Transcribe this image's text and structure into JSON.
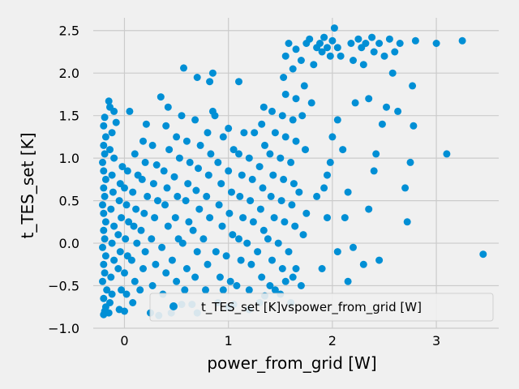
{
  "chart_data": {
    "type": "scatter",
    "title": "",
    "xlabel": "power_from_grid [W]",
    "ylabel": "t_TES_set [K]",
    "xlim": [
      -0.3,
      3.6
    ],
    "ylim": [
      -1.0,
      2.65
    ],
    "x_ticks": [
      0,
      1,
      2,
      3
    ],
    "x_tick_labels": [
      "0",
      "1",
      "2",
      "3"
    ],
    "y_ticks": [
      -1.0,
      -0.5,
      0.0,
      0.5,
      1.0,
      1.5,
      2.0,
      2.5
    ],
    "y_tick_labels": [
      "−1.0",
      "−0.5",
      "0.0",
      "0.5",
      "1.0",
      "1.5",
      "2.0",
      "2.5"
    ],
    "grid": true,
    "legend_position": "lower-right",
    "series": [
      {
        "name": "t_TES_set [K]vspower_from_grid [W]",
        "color": "#008fd5",
        "points": [
          [
            -0.2,
            -0.84
          ],
          [
            -0.19,
            -0.8
          ],
          [
            -0.18,
            -0.75
          ],
          [
            -0.2,
            -0.65
          ],
          [
            -0.17,
            -0.55
          ],
          [
            -0.21,
            -0.45
          ],
          [
            -0.19,
            -0.35
          ],
          [
            -0.2,
            -0.25
          ],
          [
            -0.18,
            -0.15
          ],
          [
            -0.21,
            -0.05
          ],
          [
            -0.19,
            0.05
          ],
          [
            -0.2,
            0.15
          ],
          [
            -0.18,
            0.25
          ],
          [
            -0.2,
            0.35
          ],
          [
            -0.21,
            0.45
          ],
          [
            -0.19,
            0.55
          ],
          [
            -0.2,
            0.65
          ],
          [
            -0.18,
            0.75
          ],
          [
            -0.2,
            0.85
          ],
          [
            -0.21,
            0.95
          ],
          [
            -0.19,
            1.05
          ],
          [
            -0.2,
            1.15
          ],
          [
            -0.18,
            1.25
          ],
          [
            -0.2,
            1.38
          ],
          [
            -0.19,
            1.48
          ],
          [
            -0.14,
            1.6
          ],
          [
            -0.15,
            1.67
          ],
          [
            -0.1,
            1.55
          ],
          [
            -0.12,
            1.3
          ],
          [
            -0.08,
            1.42
          ],
          [
            -0.15,
            -0.82
          ],
          [
            -0.14,
            -0.7
          ],
          [
            -0.12,
            -0.6
          ],
          [
            -0.13,
            -0.4
          ],
          [
            -0.1,
            -0.2
          ],
          [
            -0.12,
            0.0
          ],
          [
            -0.1,
            0.2
          ],
          [
            -0.13,
            0.4
          ],
          [
            -0.11,
            0.6
          ],
          [
            -0.12,
            0.8
          ],
          [
            -0.1,
            1.0
          ],
          [
            -0.14,
            1.1
          ],
          [
            -0.05,
            -0.78
          ],
          [
            -0.03,
            -0.55
          ],
          [
            -0.06,
            -0.3
          ],
          [
            -0.04,
            -0.1
          ],
          [
            -0.06,
            0.1
          ],
          [
            -0.03,
            0.3
          ],
          [
            -0.05,
            0.5
          ],
          [
            -0.04,
            0.7
          ],
          [
            -0.02,
            0.9
          ],
          [
            0.0,
            -0.8
          ],
          [
            0.02,
            -0.6
          ],
          [
            0.0,
            -0.35
          ],
          [
            0.03,
            -0.15
          ],
          [
            0.01,
            0.05
          ],
          [
            0.04,
            0.25
          ],
          [
            0.02,
            0.45
          ],
          [
            0.0,
            0.65
          ],
          [
            0.03,
            0.85
          ],
          [
            0.05,
            1.55
          ],
          [
            0.08,
            -0.7
          ],
          [
            0.1,
            -0.45
          ],
          [
            0.07,
            -0.2
          ],
          [
            0.12,
            0.0
          ],
          [
            0.09,
            0.2
          ],
          [
            0.11,
            0.4
          ],
          [
            0.08,
            0.6
          ],
          [
            0.13,
            0.8
          ],
          [
            0.1,
            1.05
          ],
          [
            0.15,
            -0.55
          ],
          [
            0.18,
            -0.3
          ],
          [
            0.2,
            -0.1
          ],
          [
            0.16,
            0.15
          ],
          [
            0.19,
            0.35
          ],
          [
            0.22,
            0.55
          ],
          [
            0.17,
            0.75
          ],
          [
            0.2,
            0.95
          ],
          [
            0.18,
            1.2
          ],
          [
            0.21,
            1.4
          ],
          [
            0.25,
            -0.82
          ],
          [
            0.27,
            -0.5
          ],
          [
            0.3,
            -0.25
          ],
          [
            0.26,
            0.05
          ],
          [
            0.29,
            0.3
          ],
          [
            0.32,
            0.5
          ],
          [
            0.28,
            0.7
          ],
          [
            0.31,
            0.92
          ],
          [
            0.27,
            1.15
          ],
          [
            0.35,
            1.72
          ],
          [
            0.37,
            -0.6
          ],
          [
            0.4,
            -0.35
          ],
          [
            0.36,
            -0.05
          ],
          [
            0.42,
            0.2
          ],
          [
            0.39,
            0.45
          ],
          [
            0.41,
            0.65
          ],
          [
            0.38,
            0.85
          ],
          [
            0.43,
            1.1
          ],
          [
            0.4,
            1.38
          ],
          [
            0.42,
            1.6
          ],
          [
            0.47,
            -0.75
          ],
          [
            0.5,
            -0.45
          ],
          [
            0.46,
            -0.2
          ],
          [
            0.52,
            0.05
          ],
          [
            0.49,
            0.3
          ],
          [
            0.51,
            0.55
          ],
          [
            0.48,
            0.78
          ],
          [
            0.53,
            1.0
          ],
          [
            0.5,
            1.25
          ],
          [
            0.55,
            1.5
          ],
          [
            0.57,
            2.06
          ],
          [
            0.58,
            -0.55
          ],
          [
            0.6,
            -0.3
          ],
          [
            0.56,
            0.0
          ],
          [
            0.62,
            0.25
          ],
          [
            0.59,
            0.5
          ],
          [
            0.61,
            0.7
          ],
          [
            0.63,
            0.95
          ],
          [
            0.6,
            1.2
          ],
          [
            0.65,
            -0.72
          ],
          [
            0.68,
            -0.4
          ],
          [
            0.7,
            -0.1
          ],
          [
            0.66,
            0.15
          ],
          [
            0.72,
            0.4
          ],
          [
            0.69,
            0.62
          ],
          [
            0.71,
            0.88
          ],
          [
            0.73,
            1.15
          ],
          [
            0.68,
            1.45
          ],
          [
            0.7,
            1.95
          ],
          [
            0.78,
            -0.55
          ],
          [
            0.8,
            -0.25
          ],
          [
            0.76,
            0.05
          ],
          [
            0.82,
            0.3
          ],
          [
            0.79,
            0.55
          ],
          [
            0.81,
            0.8
          ],
          [
            0.83,
            1.05
          ],
          [
            0.8,
            1.3
          ],
          [
            0.85,
            1.55
          ],
          [
            0.82,
            1.9
          ],
          [
            0.9,
            -0.7
          ],
          [
            0.92,
            -0.4
          ],
          [
            0.88,
            -0.1
          ],
          [
            0.94,
            0.2
          ],
          [
            0.91,
            0.45
          ],
          [
            0.93,
            0.7
          ],
          [
            0.9,
            0.95
          ],
          [
            0.95,
            1.25
          ],
          [
            0.87,
            1.5
          ],
          [
            0.85,
            2.0
          ],
          [
            1.0,
            -0.75
          ],
          [
            1.02,
            -0.45
          ],
          [
            0.98,
            -0.15
          ],
          [
            1.04,
            0.1
          ],
          [
            1.01,
            0.35
          ],
          [
            1.03,
            0.6
          ],
          [
            1.0,
            0.85
          ],
          [
            1.05,
            1.1
          ],
          [
            1.0,
            1.35
          ],
          [
            1.08,
            -0.5
          ],
          [
            1.12,
            -0.2
          ],
          [
            1.1,
            0.05
          ],
          [
            1.14,
            0.3
          ],
          [
            1.11,
            0.55
          ],
          [
            1.13,
            0.8
          ],
          [
            1.1,
            1.05
          ],
          [
            1.15,
            1.3
          ],
          [
            1.2,
            -0.55
          ],
          [
            1.22,
            -0.25
          ],
          [
            1.18,
            0.0
          ],
          [
            1.24,
            0.25
          ],
          [
            1.21,
            0.5
          ],
          [
            1.23,
            0.75
          ],
          [
            1.2,
            1.0
          ],
          [
            1.25,
            1.3
          ],
          [
            1.1,
            1.9
          ],
          [
            1.3,
            -0.7
          ],
          [
            1.32,
            -0.4
          ],
          [
            1.28,
            -0.1
          ],
          [
            1.34,
            0.15
          ],
          [
            1.31,
            0.4
          ],
          [
            1.33,
            0.65
          ],
          [
            1.3,
            0.9
          ],
          [
            1.35,
            1.15
          ],
          [
            1.32,
            1.4
          ],
          [
            1.34,
            1.6
          ],
          [
            1.4,
            -0.5
          ],
          [
            1.42,
            -0.2
          ],
          [
            1.38,
            0.05
          ],
          [
            1.44,
            0.3
          ],
          [
            1.41,
            0.55
          ],
          [
            1.43,
            0.8
          ],
          [
            1.4,
            1.05
          ],
          [
            1.45,
            1.3
          ],
          [
            1.42,
            1.55
          ],
          [
            1.5,
            -0.6
          ],
          [
            1.52,
            -0.3
          ],
          [
            1.48,
            0.0
          ],
          [
            1.54,
            0.25
          ],
          [
            1.51,
            0.5
          ],
          [
            1.53,
            0.75
          ],
          [
            1.5,
            1.0
          ],
          [
            1.55,
            1.25
          ],
          [
            1.52,
            1.5
          ],
          [
            1.55,
            1.75
          ],
          [
            1.53,
            1.95
          ],
          [
            1.55,
            2.2
          ],
          [
            1.58,
            2.35
          ],
          [
            1.6,
            -0.7
          ],
          [
            1.62,
            -0.4
          ],
          [
            1.58,
            -0.1
          ],
          [
            1.64,
            0.2
          ],
          [
            1.61,
            0.45
          ],
          [
            1.63,
            0.7
          ],
          [
            1.6,
            0.95
          ],
          [
            1.65,
            1.2
          ],
          [
            1.62,
            1.45
          ],
          [
            1.65,
            1.7
          ],
          [
            1.62,
            2.05
          ],
          [
            1.65,
            2.28
          ],
          [
            1.7,
            -0.5
          ],
          [
            1.72,
            0.1
          ],
          [
            1.68,
            0.6
          ],
          [
            1.74,
            1.1
          ],
          [
            1.71,
            1.5
          ],
          [
            1.73,
            1.85
          ],
          [
            1.7,
            2.15
          ],
          [
            1.75,
            2.35
          ],
          [
            1.78,
            2.4
          ],
          [
            1.8,
            1.65
          ],
          [
            1.82,
            2.1
          ],
          [
            1.85,
            2.3
          ],
          [
            1.88,
            2.35
          ],
          [
            1.9,
            2.25
          ],
          [
            1.92,
            2.42
          ],
          [
            1.95,
            2.3
          ],
          [
            1.98,
            2.2
          ],
          [
            2.0,
            2.38
          ],
          [
            2.02,
            2.53
          ],
          [
            2.05,
            2.3
          ],
          [
            2.08,
            2.2
          ],
          [
            1.9,
            -0.3
          ],
          [
            1.95,
            0.3
          ],
          [
            1.92,
            0.65
          ],
          [
            1.98,
            0.95
          ],
          [
            2.0,
            1.25
          ],
          [
            2.05,
            1.45
          ],
          [
            2.1,
            1.1
          ],
          [
            2.12,
            0.3
          ],
          [
            2.15,
            0.6
          ],
          [
            2.18,
            2.35
          ],
          [
            2.2,
            2.15
          ],
          [
            2.22,
            1.65
          ],
          [
            2.25,
            2.4
          ],
          [
            2.28,
            2.3
          ],
          [
            2.3,
            2.1
          ],
          [
            2.32,
            2.35
          ],
          [
            2.35,
            1.7
          ],
          [
            2.38,
            2.42
          ],
          [
            2.4,
            2.25
          ],
          [
            2.42,
            1.05
          ],
          [
            2.45,
            2.35
          ],
          [
            2.48,
            1.4
          ],
          [
            2.5,
            2.2
          ],
          [
            2.52,
            1.6
          ],
          [
            2.55,
            2.4
          ],
          [
            2.58,
            2.0
          ],
          [
            2.6,
            2.25
          ],
          [
            2.63,
            1.55
          ],
          [
            2.65,
            2.35
          ],
          [
            2.7,
            0.65
          ],
          [
            2.72,
            0.25
          ],
          [
            2.75,
            0.95
          ],
          [
            2.77,
            1.85
          ],
          [
            2.78,
            1.38
          ],
          [
            2.8,
            2.38
          ],
          [
            2.3,
            -0.25
          ],
          [
            2.2,
            -0.05
          ],
          [
            2.15,
            -0.45
          ],
          [
            2.4,
            0.85
          ],
          [
            2.45,
            -0.2
          ],
          [
            2.35,
            0.4
          ],
          [
            3.0,
            2.35
          ],
          [
            3.1,
            1.05
          ],
          [
            3.25,
            2.38
          ],
          [
            3.45,
            -0.13
          ],
          [
            1.45,
            -0.55
          ],
          [
            1.55,
            -0.45
          ],
          [
            1.65,
            -0.3
          ],
          [
            1.75,
            0.35
          ],
          [
            1.85,
            0.55
          ],
          [
            1.95,
            0.8
          ],
          [
            2.05,
            -0.1
          ],
          [
            0.33,
            -0.85
          ],
          [
            0.45,
            -0.82
          ],
          [
            0.55,
            -0.72
          ],
          [
            0.7,
            -0.82
          ],
          [
            0.95,
            -0.55
          ],
          [
            1.05,
            -0.72
          ],
          [
            1.2,
            -0.78
          ],
          [
            1.35,
            -0.62
          ]
        ]
      }
    ]
  }
}
